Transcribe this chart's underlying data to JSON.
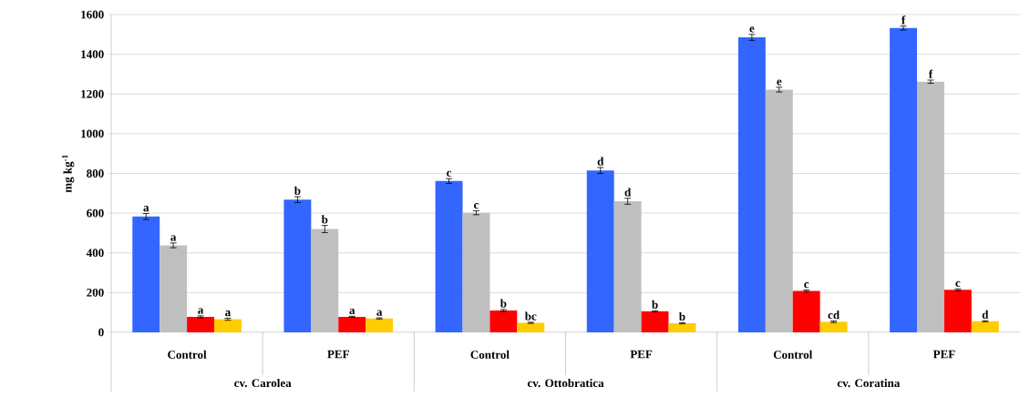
{
  "chart_data": {
    "type": "bar",
    "ylabel": "mg kg$^{-1}$",
    "categories": [
      "Control",
      "PEF",
      "Control",
      "PEF",
      "Control",
      "PEF"
    ],
    "annotations": [
      "cv. Carolea",
      "cv. Ottobratica",
      "cv. Coratina"
    ],
    "series": [
      {
        "color": "#3366ff",
        "values": [
          583,
          668,
          762,
          815,
          1485,
          1532
        ],
        "errors": [
          15,
          15,
          12,
          15,
          15,
          10
        ],
        "value_labels": [
          "a",
          "b",
          "c",
          "d",
          "e",
          "f"
        ]
      },
      {
        "color": "#bfbfbf",
        "values": [
          438,
          520,
          602,
          660,
          1222,
          1262
        ],
        "errors": [
          12,
          18,
          10,
          15,
          12,
          8
        ],
        "value_labels": [
          "a",
          "b",
          "c",
          "d",
          "e",
          "f"
        ]
      },
      {
        "color": "#ff0000",
        "values": [
          78,
          78,
          110,
          106,
          208,
          214
        ],
        "errors": [
          5,
          3,
          5,
          3,
          5,
          5
        ],
        "value_labels": [
          "a",
          "a",
          "b",
          "b",
          "c",
          "c"
        ]
      },
      {
        "color": "#ffcc00",
        "values": [
          66,
          70,
          48,
          46,
          53,
          56
        ],
        "errors": [
          5,
          3,
          3,
          3,
          4,
          3
        ],
        "value_labels": [
          "a",
          "a",
          "bc",
          "b",
          "cd",
          "d"
        ]
      }
    ],
    "ylim": [
      0,
      1600
    ],
    "yticks": [
      0,
      200,
      400,
      600,
      800,
      1000,
      1200,
      1400,
      1600
    ],
    "grid": "y"
  }
}
